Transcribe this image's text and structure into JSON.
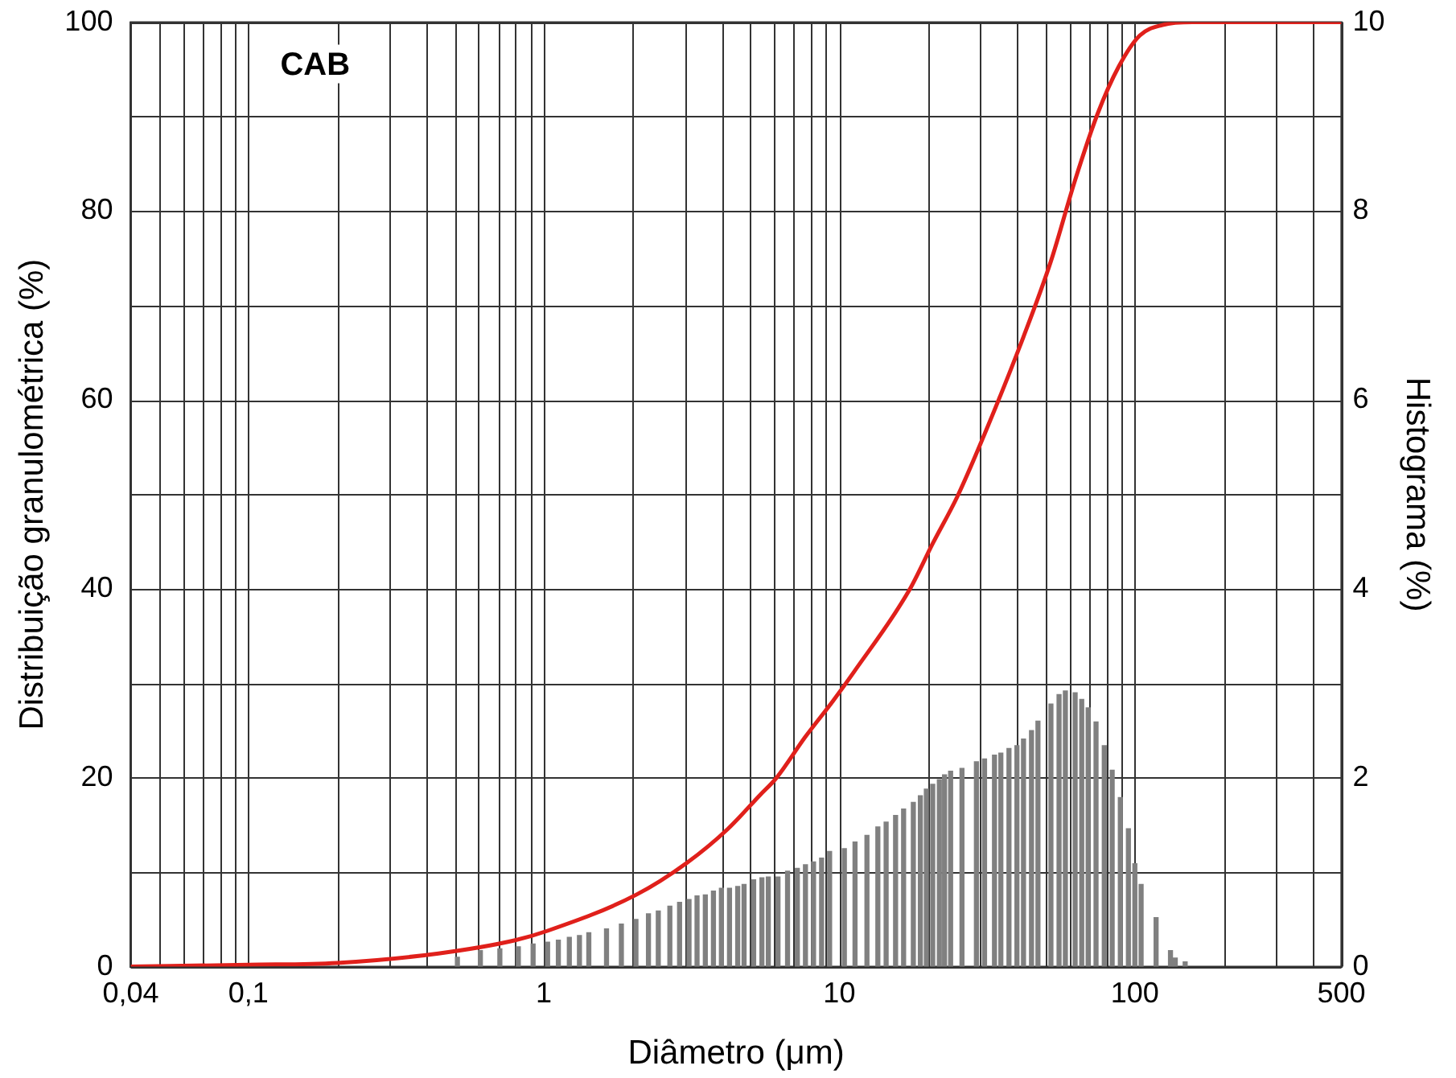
{
  "chart_data": {
    "type": "line",
    "xlabel": "Diâmetro (μm)",
    "ylabel": "Distribuição granulométrica (%)",
    "y2label": "Histograma (%)",
    "annotations": [
      "CAB"
    ],
    "log": "x",
    "grid": true,
    "legend": false,
    "marker": "none",
    "xlim": [
      0.04,
      500
    ],
    "xticks": [
      {
        "value": 0.04,
        "label": "0,04"
      },
      {
        "value": 0.05,
        "label": null
      },
      {
        "value": 0.06,
        "label": null
      },
      {
        "value": 0.07,
        "label": null
      },
      {
        "value": 0.08,
        "label": null
      },
      {
        "value": 0.09,
        "label": null
      },
      {
        "value": 0.1,
        "label": "0,1"
      },
      {
        "value": 0.2,
        "label": null
      },
      {
        "value": 0.3,
        "label": null
      },
      {
        "value": 0.4,
        "label": null
      },
      {
        "value": 0.5,
        "label": null
      },
      {
        "value": 0.6,
        "label": null
      },
      {
        "value": 0.7,
        "label": null
      },
      {
        "value": 0.8,
        "label": null
      },
      {
        "value": 0.9,
        "label": null
      },
      1,
      {
        "value": 2,
        "label": null
      },
      {
        "value": 3,
        "label": null
      },
      {
        "value": 4,
        "label": null
      },
      {
        "value": 5,
        "label": null
      },
      {
        "value": 6,
        "label": null
      },
      {
        "value": 7,
        "label": null
      },
      {
        "value": 8,
        "label": null
      },
      {
        "value": 9,
        "label": null
      },
      10,
      {
        "value": 20,
        "label": null
      },
      {
        "value": 30,
        "label": null
      },
      {
        "value": 40,
        "label": null
      },
      {
        "value": 50,
        "label": null
      },
      {
        "value": 60,
        "label": null
      },
      {
        "value": 70,
        "label": null
      },
      {
        "value": 80,
        "label": null
      },
      {
        "value": 90,
        "label": null
      },
      100,
      {
        "value": 200,
        "label": null
      },
      {
        "value": 300,
        "label": null
      },
      {
        "value": 400,
        "label": null
      },
      500
    ],
    "ylim": [
      0,
      100
    ],
    "yticks": [
      0,
      {
        "value": 10,
        "label": null
      },
      20,
      {
        "value": 30,
        "label": null
      },
      40,
      {
        "value": 50,
        "label": null
      },
      60,
      {
        "value": 70,
        "label": null
      },
      80,
      {
        "value": 90,
        "label": null
      },
      100
    ],
    "y2lim": [
      0,
      10
    ],
    "y2ticks": [
      0,
      2,
      4,
      6,
      8,
      10
    ],
    "series": [
      {
        "type": "bar",
        "axis": "y2",
        "color": "#808080",
        "x": [
          0.51,
          0.61,
          0.71,
          0.82,
          0.92,
          1.03,
          1.12,
          1.22,
          1.32,
          1.42,
          1.63,
          1.83,
          2.05,
          2.26,
          2.44,
          2.67,
          2.88,
          3.1,
          3.3,
          3.52,
          3.75,
          3.99,
          4.25,
          4.53,
          4.76,
          5.13,
          5.47,
          5.75,
          6.2,
          6.68,
          7.21,
          7.68,
          8.18,
          8.71,
          9.27,
          10.4,
          11.3,
          12.4,
          13.5,
          14.4,
          15.5,
          16.5,
          17.8,
          18.8,
          19.7,
          20.7,
          21.8,
          22.7,
          23.8,
          26,
          29.1,
          31,
          33.5,
          35.2,
          37.5,
          39.9,
          42,
          44.7,
          47,
          52,
          55.4,
          58.2,
          62.8,
          66.1,
          69.5,
          73.9,
          78.8,
          83.8,
          89.3,
          95.1,
          100,
          105,
          118,
          132,
          137,
          148
        ],
        "values": [
          0.1,
          0.17,
          0.19,
          0.21,
          0.24,
          0.26,
          0.28,
          0.31,
          0.33,
          0.36,
          0.4,
          0.45,
          0.5,
          0.56,
          0.59,
          0.64,
          0.68,
          0.71,
          0.75,
          0.76,
          0.8,
          0.83,
          0.83,
          0.85,
          0.87,
          0.92,
          0.94,
          0.95,
          0.95,
          1.01,
          1.04,
          1.08,
          1.11,
          1.15,
          1.22,
          1.25,
          1.32,
          1.39,
          1.48,
          1.53,
          1.6,
          1.67,
          1.74,
          1.81,
          1.88,
          1.93,
          1.98,
          2.03,
          2.07,
          2.1,
          2.17,
          2.2,
          2.24,
          2.26,
          2.31,
          2.34,
          2.41,
          2.5,
          2.6,
          2.78,
          2.88,
          2.92,
          2.9,
          2.83,
          2.74,
          2.59,
          2.34,
          2.08,
          1.79,
          1.46,
          1.09,
          0.87,
          0.52,
          0.17,
          0.09,
          0.05
        ]
      },
      {
        "color": "#e0201b",
        "x": [
          0.04,
          0.1,
          0.2,
          0.44,
          0.8,
          1.03,
          2.05,
          3.05,
          4.2,
          5.4,
          6.13,
          7.66,
          9.5,
          11.2,
          17.2,
          20.7,
          25.1,
          31.4,
          42,
          52,
          62.8,
          74.8,
          88.2,
          104,
          124,
          157,
          500
        ],
        "values": [
          0,
          0.2,
          0.4,
          1.4,
          2.8,
          3.8,
          7.6,
          11,
          14.6,
          18.2,
          20,
          24.3,
          28.1,
          31.2,
          39.8,
          44.8,
          49.8,
          56.8,
          66.7,
          74.7,
          83.3,
          90.3,
          95.3,
          98.6,
          99.7,
          100,
          100
        ]
      }
    ]
  }
}
